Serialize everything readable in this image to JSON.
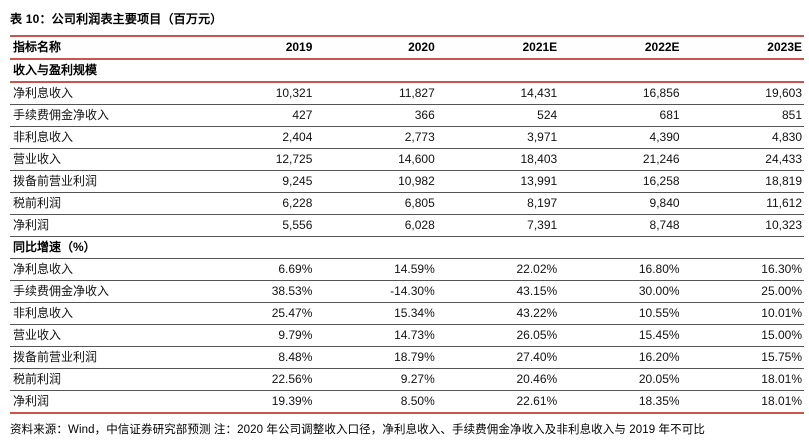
{
  "page": {
    "title": "表 10：公司利润表主要项目（百万元）",
    "footer": "资料来源：Wind，中信证券研究部预测 注：2020 年公司调整收入口径，净利息收入、手续费佣金净收入及非利息收入与 2019 年不可比"
  },
  "colors": {
    "accent_red": "#cc5450",
    "row_line_gray": "#555555",
    "text_black": "#111111"
  },
  "table": {
    "columns": [
      "指标名称",
      "2019",
      "2020",
      "2021E",
      "2022E",
      "2023E"
    ],
    "sections": [
      {
        "label": "收入与盈利规模",
        "divider_color": "red",
        "rows": [
          {
            "label": "净利息收入",
            "values": [
              "10,321",
              "11,827",
              "14,431",
              "16,856",
              "19,603"
            ]
          },
          {
            "label": "手续费佣金净收入",
            "values": [
              "427",
              "366",
              "524",
              "681",
              "851"
            ]
          },
          {
            "label": "非利息收入",
            "values": [
              "2,404",
              "2,773",
              "3,971",
              "4,390",
              "4,830"
            ]
          },
          {
            "label": "营业收入",
            "values": [
              "12,725",
              "14,600",
              "18,403",
              "21,246",
              "24,433"
            ]
          },
          {
            "label": "拨备前营业利润",
            "values": [
              "9,245",
              "10,982",
              "13,991",
              "16,258",
              "18,819"
            ]
          },
          {
            "label": "税前利润",
            "values": [
              "6,228",
              "6,805",
              "8,197",
              "9,840",
              "11,612"
            ]
          },
          {
            "label": "净利润",
            "values": [
              "5,556",
              "6,028",
              "7,391",
              "8,748",
              "10,323"
            ]
          }
        ]
      },
      {
        "label": "同比增速（%）",
        "divider_color": "gray",
        "rows": [
          {
            "label": "净利息收入",
            "values": [
              "6.69%",
              "14.59%",
              "22.02%",
              "16.80%",
              "16.30%"
            ]
          },
          {
            "label": "手续费佣金净收入",
            "values": [
              "38.53%",
              "-14.30%",
              "43.15%",
              "30.00%",
              "25.00%"
            ]
          },
          {
            "label": "非利息收入",
            "values": [
              "25.47%",
              "15.34%",
              "43.22%",
              "10.55%",
              "10.01%"
            ]
          },
          {
            "label": "营业收入",
            "values": [
              "9.79%",
              "14.73%",
              "26.05%",
              "15.45%",
              "15.00%"
            ]
          },
          {
            "label": "拨备前营业利润",
            "values": [
              "8.48%",
              "18.79%",
              "27.40%",
              "16.20%",
              "15.75%"
            ]
          },
          {
            "label": "税前利润",
            "values": [
              "22.56%",
              "9.27%",
              "20.46%",
              "20.05%",
              "18.01%"
            ]
          },
          {
            "label": "净利润",
            "values": [
              "19.39%",
              "8.50%",
              "22.61%",
              "18.35%",
              "18.01%"
            ]
          }
        ]
      }
    ]
  }
}
